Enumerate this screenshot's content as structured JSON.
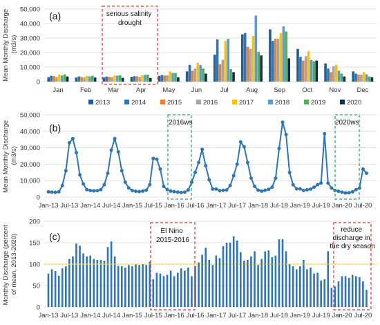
{
  "chart_data": [
    {
      "panel": "(a)",
      "type": "bar",
      "ylabel": "Mean Monthly Discharge\n(m3/s)",
      "ylim": [
        0,
        50000
      ],
      "yticks": [
        "0",
        "10,000",
        "20,000",
        "30,000",
        "40,000",
        "50,000"
      ],
      "grid": true,
      "legend_position": "bottom",
      "categories": [
        "Jan",
        "Feb",
        "Mar",
        "Apr",
        "May",
        "Jun",
        "Jul",
        "Aug",
        "Sep",
        "Oct",
        "Nov",
        "Dec"
      ],
      "series": [
        {
          "name": "2013",
          "color": "#1f5e96",
          "values": [
            3000,
            2800,
            2900,
            3300,
            4000,
            7000,
            18500,
            32500,
            36000,
            22500,
            12500,
            7000
          ]
        },
        {
          "name": "2014",
          "color": "#2e75b6",
          "values": [
            4000,
            3600,
            3500,
            3700,
            4500,
            11500,
            29000,
            33500,
            28000,
            17000,
            9000,
            5500
          ]
        },
        {
          "name": "2015",
          "color": "#ed7d31",
          "values": [
            3800,
            3100,
            3300,
            3600,
            4200,
            7500,
            12000,
            24000,
            29500,
            14500,
            6500,
            4800
          ]
        },
        {
          "name": "2016",
          "color": "#a5a5a5",
          "values": [
            3200,
            2900,
            3000,
            3200,
            4300,
            9000,
            15000,
            22500,
            29500,
            17500,
            10500,
            4800
          ]
        },
        {
          "name": "2017",
          "color": "#ffc000",
          "values": [
            4800,
            3900,
            4100,
            4300,
            7000,
            13000,
            28000,
            31500,
            33500,
            21000,
            11500,
            6500
          ]
        },
        {
          "name": "2018",
          "color": "#5b9bd5",
          "values": [
            4200,
            3600,
            4100,
            4700,
            6000,
            11500,
            29500,
            45500,
            38000,
            15000,
            7500,
            5000
          ]
        },
        {
          "name": "2019",
          "color": "#4caf50",
          "values": [
            5000,
            4000,
            4400,
            4800,
            6000,
            9000,
            8500,
            20500,
            34500,
            14000,
            5500,
            3500
          ]
        },
        {
          "name": "2020",
          "color": "#0d2a4f",
          "values": [
            3500,
            2800,
            2600,
            2500,
            3000,
            5500,
            6500,
            18000,
            16000,
            14500,
            3500,
            3000
          ]
        }
      ],
      "annotations": [
        {
          "text": [
            "serious salinity",
            "drought"
          ],
          "style": "red-dashed-box"
        }
      ]
    },
    {
      "panel": "(b)",
      "type": "line",
      "ylabel": "Mean Monthly Discharge\n(m3/s)",
      "ylim": [
        0,
        50000
      ],
      "yticks": [
        "0",
        "10,000",
        "20,000",
        "30,000",
        "40,000",
        "50,000"
      ],
      "grid": true,
      "color": "#2e75b6",
      "xtick_labels": [
        "Jan-13",
        "Jul-13",
        "Jan-14",
        "Jul-14",
        "Jan-15",
        "Jul-15",
        "Jan-16",
        "Jul-16",
        "Jan-17",
        "Jul-17",
        "Jan-18",
        "Jul-18",
        "Jan-19",
        "Jul-19",
        "Jan-20",
        "Jul-20"
      ],
      "x_start": "2013-01",
      "values": [
        3200,
        3000,
        2900,
        3200,
        7000,
        16000,
        33000,
        35500,
        27000,
        13500,
        8000,
        4500,
        4000,
        3800,
        3900,
        4500,
        7500,
        14500,
        28500,
        35500,
        27500,
        16000,
        9000,
        5500,
        4000,
        3500,
        3300,
        3600,
        4200,
        7500,
        23500,
        23000,
        17000,
        6500,
        4500,
        3600,
        3300,
        3000,
        2800,
        3000,
        4300,
        9000,
        15000,
        21000,
        29000,
        19000,
        10500,
        4900,
        4900,
        3900,
        4100,
        4300,
        7000,
        13000,
        20000,
        33500,
        30500,
        21000,
        11500,
        6500,
        4200,
        3600,
        4100,
        4700,
        6000,
        11500,
        29500,
        45500,
        38000,
        15000,
        7500,
        5000,
        5000,
        4000,
        4400,
        4800,
        6000,
        7500,
        8500,
        38500,
        8500,
        5500,
        4000,
        3500,
        3000,
        2500,
        2600,
        3200,
        4500,
        5500,
        17000,
        14500
      ],
      "annotations": [
        {
          "text": "2016ws",
          "style": "green-dashed-box"
        },
        {
          "text": "2020ws",
          "style": "green-dashed-box"
        }
      ]
    },
    {
      "panel": "(c)",
      "type": "bar",
      "ylabel": "Monthly Discharge (percent\nof mean, 2013-2020)",
      "ylim": [
        0,
        200
      ],
      "yticks": [
        "0",
        "50",
        "100",
        "150",
        "200"
      ],
      "grid": true,
      "reference_line": 100,
      "color": "#2e75b6",
      "xtick_labels": [
        "Jan-13",
        "Jul-13",
        "Jan-14",
        "Jul-14",
        "Jan-15",
        "Jul-15",
        "Jan-16",
        "Jul-16",
        "Jan-17",
        "Jul-17",
        "Jan-18",
        "Jul-18",
        "Jan-19",
        "Jul-19",
        "Jan-20",
        "Jul-20"
      ],
      "x_start": "2013-01",
      "values": [
        78,
        88,
        84,
        73,
        90,
        95,
        112,
        118,
        148,
        143,
        125,
        118,
        120,
        112,
        110,
        110,
        108,
        140,
        153,
        118,
        96,
        95,
        92,
        98,
        95,
        100,
        98,
        100,
        98,
        106,
        65,
        80,
        78,
        72,
        75,
        85,
        72,
        80,
        90,
        85,
        92,
        72,
        95,
        104,
        122,
        138,
        110,
        98,
        120,
        114,
        142,
        150,
        150,
        165,
        155,
        128,
        108,
        110,
        118,
        130,
        98,
        112,
        130,
        132,
        116,
        120,
        158,
        158,
        130,
        100,
        95,
        88,
        95,
        110,
        88,
        92,
        78,
        80,
        62,
        65,
        130,
        45,
        48,
        60,
        72,
        72,
        68,
        75,
        72,
        70,
        60,
        40
      ],
      "annotations": [
        {
          "text": [
            "El Nino",
            "2015-2016"
          ],
          "style": "red-dashed-box"
        },
        {
          "text": [
            "reduce",
            "discharge in",
            "the dry season"
          ],
          "style": "red-dashed-box"
        }
      ]
    }
  ]
}
